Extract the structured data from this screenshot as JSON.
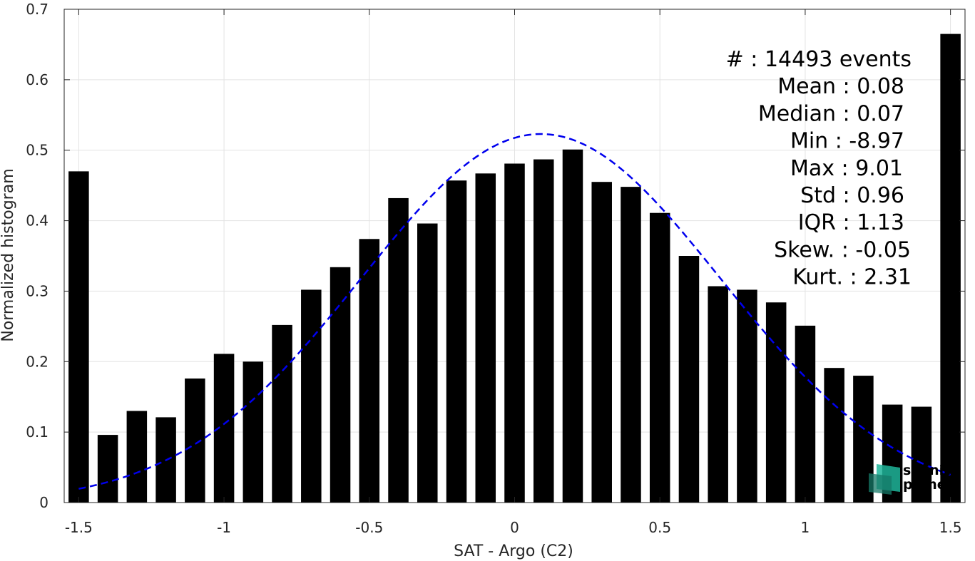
{
  "chart_data": {
    "type": "bar",
    "xlabel": "SAT - Argo (C2)",
    "ylabel": "Normalized histogram",
    "xlim": [
      -1.55,
      1.55
    ],
    "ylim": [
      0,
      0.7
    ],
    "xticks": [
      -1.5,
      -1,
      -0.5,
      0,
      0.5,
      1,
      1.5
    ],
    "xtick_labels": [
      "-1.5",
      "-1",
      "-0.5",
      "0",
      "0.5",
      "1",
      "1.5"
    ],
    "yticks": [
      0,
      0.1,
      0.2,
      0.3,
      0.4,
      0.5,
      0.6,
      0.7
    ],
    "ytick_labels": [
      "0",
      "0.1",
      "0.2",
      "0.3",
      "0.4",
      "0.5",
      "0.6",
      "0.7"
    ],
    "grid": true,
    "bar_color": "#000000",
    "bar_width": 0.07,
    "bars": [
      {
        "x": -1.5,
        "y": 0.47
      },
      {
        "x": -1.4,
        "y": 0.096
      },
      {
        "x": -1.3,
        "y": 0.13
      },
      {
        "x": -1.2,
        "y": 0.121
      },
      {
        "x": -1.1,
        "y": 0.176
      },
      {
        "x": -1.0,
        "y": 0.211
      },
      {
        "x": -0.9,
        "y": 0.2
      },
      {
        "x": -0.8,
        "y": 0.252
      },
      {
        "x": -0.7,
        "y": 0.302
      },
      {
        "x": -0.6,
        "y": 0.334
      },
      {
        "x": -0.5,
        "y": 0.374
      },
      {
        "x": -0.4,
        "y": 0.432
      },
      {
        "x": -0.3,
        "y": 0.396
      },
      {
        "x": -0.2,
        "y": 0.457
      },
      {
        "x": -0.1,
        "y": 0.467
      },
      {
        "x": 0.0,
        "y": 0.481
      },
      {
        "x": 0.1,
        "y": 0.487
      },
      {
        "x": 0.2,
        "y": 0.501
      },
      {
        "x": 0.3,
        "y": 0.455
      },
      {
        "x": 0.4,
        "y": 0.448
      },
      {
        "x": 0.5,
        "y": 0.411
      },
      {
        "x": 0.6,
        "y": 0.35
      },
      {
        "x": 0.7,
        "y": 0.307
      },
      {
        "x": 0.8,
        "y": 0.302
      },
      {
        "x": 0.9,
        "y": 0.284
      },
      {
        "x": 1.0,
        "y": 0.251
      },
      {
        "x": 1.1,
        "y": 0.191
      },
      {
        "x": 1.2,
        "y": 0.18
      },
      {
        "x": 1.3,
        "y": 0.139
      },
      {
        "x": 1.4,
        "y": 0.136
      },
      {
        "x": 1.5,
        "y": 0.665
      }
    ],
    "fit_curve": {
      "type": "gaussian",
      "style": "dashed",
      "color": "#0000ee",
      "x_range": [
        -1.5,
        1.5
      ],
      "peak_x": 0.09,
      "peak_y": 0.523,
      "sigma": 0.62
    },
    "stats": [
      {
        "name": "#",
        "sep": "  : ",
        "value": "14493 events"
      },
      {
        "name": "Mean",
        "sep": " : ",
        "value": "0.08"
      },
      {
        "name": "Median",
        "sep": " : ",
        "value": "0.07"
      },
      {
        "name": "Min",
        "sep": " : ",
        "value": "-8.97"
      },
      {
        "name": "Max",
        "sep": " : ",
        "value": "9.01"
      },
      {
        "name": "Std",
        "sep": " : ",
        "value": "0.96"
      },
      {
        "name": "IQR",
        "sep": " : ",
        "value": "1.13"
      },
      {
        "name": "Skew.",
        "sep": " : ",
        "value": "-0.05"
      },
      {
        "name": "Kurt.",
        "sep": " : ",
        "value": "2.31"
      }
    ],
    "legend_placement": "top-right"
  },
  "logo": {
    "line1": "salinity",
    "line2": "pi-mep",
    "color_primary": "#1fb59a",
    "color_dark": "#157a68"
  }
}
